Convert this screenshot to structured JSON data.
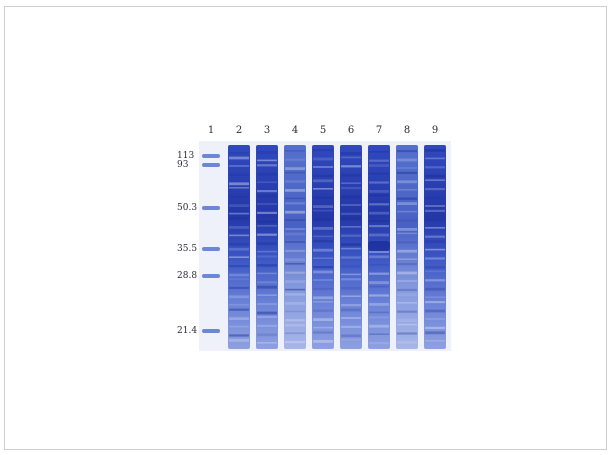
{
  "lane_numbers": [
    "1",
    "2",
    "3",
    "4",
    "5",
    "6",
    "7",
    "8",
    "9"
  ],
  "marker_labels": [
    "113",
    "93",
    "50.3",
    "35.5",
    "28.8",
    "21.4"
  ],
  "colors": {
    "gel_background": "#f2f4fb",
    "lane_dark": "#2a44b8",
    "lane_light": "#7f95dc",
    "marker_band": "#6d86d6"
  }
}
